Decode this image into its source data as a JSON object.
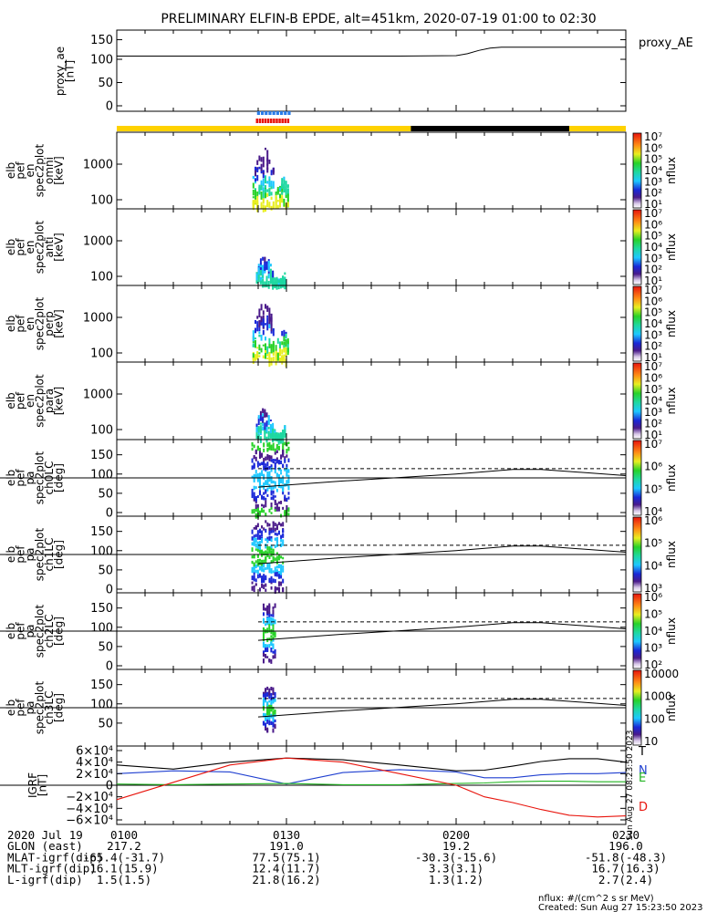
{
  "title": "PRELIMINARY ELFIN-B EPDE, alt=451km, 2020-07-19 01:00 to 02:30",
  "chart_data": [
    {
      "type": "line",
      "name": "proxy_ae",
      "ylabel": [
        "proxy_ae",
        "[nT]"
      ],
      "legend": "proxy_AE",
      "ylim": [
        0,
        155
      ],
      "yticks": [
        "150",
        "100",
        "50",
        "0"
      ],
      "x_min": [
        0,
        10,
        20,
        30,
        40,
        50,
        60,
        62,
        64,
        66,
        68,
        70,
        80,
        90
      ],
      "y": [
        107,
        107,
        107,
        107,
        107,
        107,
        108,
        112,
        119,
        124,
        126,
        126,
        126,
        126
      ]
    },
    {
      "type": "bar",
      "name": "science-zone / sunlight indicator",
      "spans": [
        {
          "from_min": 0,
          "to_min": 52,
          "state": "sunlight",
          "color": "#ffd200"
        },
        {
          "from_min": 52,
          "to_min": 80,
          "state": "eclipse",
          "color": "#000000"
        },
        {
          "from_min": 80,
          "to_min": 90,
          "state": "sunlight",
          "color": "#ffd200"
        }
      ],
      "markers": [
        {
          "from_min": 24.8,
          "to_min": 30.5,
          "color": "#2b7de9"
        },
        {
          "from_min": 24.6,
          "to_min": 30.2,
          "color": "#e8140c"
        }
      ]
    },
    {
      "type": "heatmap",
      "ylabel": [
        "elb",
        "pef",
        "en",
        "spec2plot",
        "omni",
        "[keV]"
      ],
      "yticks": [
        "1000",
        "100"
      ],
      "colorbar": {
        "label": "nflux",
        "ticks": [
          "10⁷",
          "10⁶",
          "10⁵",
          "10⁴",
          "10³",
          "10²",
          "10¹"
        ]
      },
      "active_window_min": [
        24.5,
        31
      ]
    },
    {
      "type": "heatmap",
      "ylabel": [
        "elb",
        "pef",
        "en",
        "spec2plot",
        "anti",
        "[keV]"
      ],
      "yticks": [
        "1000",
        "100"
      ],
      "colorbar": {
        "label": "nflux",
        "ticks": [
          "10⁷",
          "10⁶",
          "10⁵",
          "10⁴",
          "10³",
          "10²",
          "10¹"
        ]
      },
      "active_window_min": [
        24.5,
        31
      ]
    },
    {
      "type": "heatmap",
      "ylabel": [
        "elb",
        "pef",
        "en",
        "spec2plot",
        "perp",
        "[keV]"
      ],
      "yticks": [
        "1000",
        "100"
      ],
      "colorbar": {
        "label": "nflux",
        "ticks": [
          "10⁷",
          "10⁶",
          "10⁵",
          "10⁴",
          "10³",
          "10²",
          "10¹"
        ]
      },
      "active_window_min": [
        24.5,
        31
      ]
    },
    {
      "type": "heatmap",
      "ylabel": [
        "elb",
        "pef",
        "en",
        "spec2plot",
        "para",
        "[keV]"
      ],
      "yticks": [
        "1000",
        "100"
      ],
      "colorbar": {
        "label": "nflux",
        "ticks": [
          "10⁷",
          "10⁶",
          "10⁵",
          "10⁴",
          "10³",
          "10²",
          "10¹"
        ]
      },
      "active_window_min": [
        24.5,
        31
      ]
    },
    {
      "type": "heatmap",
      "ylabel": [
        "elb",
        "pef",
        "pa",
        "spec2plot",
        "ch0LC",
        "[deg]"
      ],
      "yticks": [
        "150",
        "100",
        "50",
        "0"
      ],
      "ylim": [
        0,
        180
      ],
      "colorbar": {
        "label": "nflux",
        "ticks": [
          "10⁷",
          "10⁶",
          "10⁵",
          "10⁴"
        ]
      },
      "lines": {
        "x_min": [
          25,
          40,
          60,
          70,
          75,
          90
        ],
        "loss_cone": [
          66,
          82,
          100,
          112,
          112,
          96
        ],
        "anti_loss_cone": [
          114,
          114,
          114,
          114,
          114,
          114
        ]
      }
    },
    {
      "type": "heatmap",
      "ylabel": [
        "elb",
        "pef",
        "pa",
        "spec2plot",
        "ch1LC",
        "[deg]"
      ],
      "yticks": [
        "150",
        "100",
        "50",
        "0"
      ],
      "ylim": [
        0,
        180
      ],
      "colorbar": {
        "label": "nflux",
        "ticks": [
          "10⁶",
          "10⁵",
          "10⁴",
          "10³"
        ]
      },
      "lines": {
        "x_min": [
          25,
          40,
          60,
          70,
          75,
          90
        ],
        "loss_cone": [
          66,
          82,
          100,
          112,
          112,
          96
        ],
        "anti_loss_cone": [
          114,
          114,
          114,
          114,
          114,
          114
        ]
      }
    },
    {
      "type": "heatmap",
      "ylabel": [
        "elb",
        "pef",
        "pa",
        "spec2plot",
        "ch2LC",
        "[deg]"
      ],
      "yticks": [
        "150",
        "100",
        "50",
        "0"
      ],
      "ylim": [
        0,
        180
      ],
      "colorbar": {
        "label": "nflux",
        "ticks": [
          "10⁶",
          "10⁵",
          "10⁴",
          "10³",
          "10²"
        ]
      },
      "lines": {
        "x_min": [
          25,
          40,
          60,
          70,
          75,
          90
        ],
        "loss_cone": [
          66,
          82,
          100,
          112,
          112,
          96
        ],
        "anti_loss_cone": [
          114,
          114,
          114,
          114,
          114,
          114
        ]
      }
    },
    {
      "type": "heatmap",
      "ylabel": [
        "elb",
        "pef",
        "pa",
        "spec2plot",
        "ch3LC",
        "[deg]"
      ],
      "yticks": [
        "150",
        "100",
        "50"
      ],
      "ylim": [
        0,
        180
      ],
      "colorbar": {
        "label": "nflux",
        "ticks": [
          "10000",
          "1000",
          "100",
          "10"
        ]
      },
      "lines": {
        "x_min": [
          25,
          40,
          60,
          70,
          75,
          90
        ],
        "loss_cone": [
          66,
          82,
          100,
          112,
          112,
          96
        ],
        "anti_loss_cone": [
          114,
          114,
          114,
          114,
          114,
          114
        ]
      }
    },
    {
      "type": "line",
      "name": "IGRF",
      "ylabel": [
        "IGRF",
        "[nT]"
      ],
      "yticks": [
        "6×10⁴",
        "4×10⁴",
        "2×10⁴",
        "0",
        "−2×10⁴",
        "−4×10⁴",
        "−6×10⁴"
      ],
      "ylim": [
        -60000,
        60000
      ],
      "x_min": [
        0,
        10,
        20,
        30,
        40,
        50,
        60,
        65,
        70,
        75,
        80,
        85,
        90
      ],
      "series": [
        {
          "name": "T",
          "color": "#000000",
          "values": [
            35000,
            28000,
            40000,
            47000,
            44000,
            35000,
            25000,
            26000,
            33000,
            41000,
            46000,
            46000,
            40000
          ]
        },
        {
          "name": "N",
          "color": "#1f3fd0",
          "values": [
            20000,
            25000,
            23000,
            2000,
            22000,
            27000,
            23000,
            13000,
            13000,
            18000,
            20000,
            20000,
            22000
          ]
        },
        {
          "name": "E",
          "color": "#22b422",
          "values": [
            2000,
            1000,
            2000,
            3000,
            1000,
            1000,
            3000,
            4000,
            6000,
            7000,
            7000,
            6000,
            6000
          ]
        },
        {
          "name": "D",
          "color": "#e8140c",
          "values": [
            -25000,
            5000,
            35000,
            47000,
            40000,
            20000,
            0,
            -20000,
            -30000,
            -42000,
            -52000,
            -55000,
            -53000
          ]
        }
      ],
      "side_text": "Sun Aug 27 08:23:50 2023"
    }
  ],
  "footer": {
    "rows": [
      [
        "2020 Jul 19",
        "0100",
        "0130",
        "0200",
        "0230"
      ],
      [
        "GLON (east)",
        "217.2",
        "191.0",
        "19.2",
        "196.0"
      ],
      [
        "MLAT-igrf(dip)",
        "-65.4(-31.7)",
        "77.5(75.1)",
        "-30.3(-15.6)",
        "-51.8(-48.3)"
      ],
      [
        "MLT-igrf(dip)",
        "16.1(15.9)",
        "12.4(11.7)",
        "3.3(3.1)",
        "16.7(16.3)"
      ],
      [
        "L-igrf(dip)",
        "1.5(1.5)",
        "21.8(16.2)",
        "1.3(1.2)",
        "2.7(2.4)"
      ]
    ],
    "units_note": "nflux: #/(cm^2 s sr MeV)",
    "created": "Created: Sun Aug 27 15:23:50 2023"
  }
}
